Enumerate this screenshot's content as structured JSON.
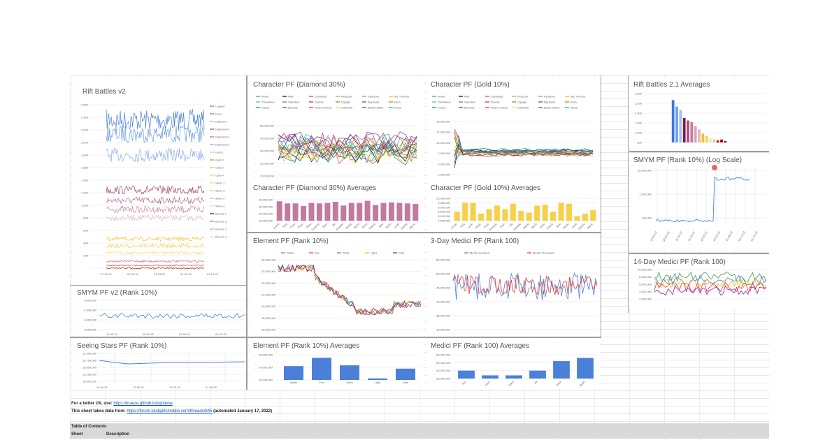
{
  "colors": {
    "blue": "#4a80d8",
    "maroon": "#a24a6e",
    "mauve": "#c27ba0",
    "gold": "#f1c232",
    "yellow": "#f6d04b",
    "red": "#e06666"
  },
  "charts": {
    "rift": {
      "title": "Rift Battles v2",
      "legend": [
        "Legend",
        "Hero",
        "Diamond",
        "Diamond 4",
        "Diamond 3",
        "Diamond 2",
        "Gold 1",
        "Gold 3",
        "Gold 2",
        "Gold 4",
        "Silver 1",
        "Silver 3",
        "Silver 2",
        "Silver 4",
        "Bronze 1",
        "Bronze 3",
        "Bronze 2",
        "Bronze 4"
      ],
      "xticks": [
        "07-09-21",
        "07-20-21",
        "01-03-22",
        "01-08-22",
        "01-16-22"
      ]
    },
    "smym_v2": {
      "title": "SMYM PF v2 (Rank 10%)",
      "yticks": [
        "5,000,000",
        "4,500,000",
        "4,000,000",
        "3,500,000"
      ],
      "xticks": [
        "11-03-21",
        "10-30-22",
        "01-09-21",
        "01-15-22"
      ]
    },
    "seeing": {
      "title": "Seeing Stars PF (Rank 10%)",
      "yticks": [
        "11,000,000",
        "10,750,000",
        "10,500,000",
        "10,250,000",
        "10,000,000"
      ],
      "xticks": [
        "11-04-21",
        "12-09-21",
        "12-03-21",
        "01-06-22"
      ]
    },
    "diamond": {
      "title": "Character PF (Diamond 30%)",
      "legend": [
        "Annie",
        "Filia",
        "Cerebella",
        "Peacock",
        "Parasoul",
        "Ms. Fortune",
        "Painwheel",
        "Valentine",
        "Double",
        "Squigly",
        "Big Band",
        "Eliza",
        "Fukua",
        "Beowulf",
        "Robo-Fortune",
        "Umbrella",
        "Black Dahlia",
        "Marie"
      ],
      "yticks": [
        "50,000,000",
        "40,000,000",
        "30,000,000",
        "20,000,000",
        "10,000,000"
      ]
    },
    "gold": {
      "title": "Character PF (Gold 10%)",
      "legend": [
        "Annie",
        "Filia",
        "Cerebella",
        "Peacock",
        "Parasoul",
        "Ms. Fortune",
        "Painwheel",
        "Valentine",
        "Double",
        "Squigly",
        "Big Band",
        "Eliza",
        "Fukua",
        "Beowulf",
        "Robo-Fortune",
        "Umbrella",
        "Black Dahlia",
        "Marie"
      ],
      "yticks": [
        "15,000,000",
        "12,500,000",
        "10,000,000",
        "7,500,000",
        "5,000,000",
        "2,500,000"
      ]
    },
    "diamond_avg": {
      "title": "Character PF (Diamond 30%) Averages",
      "categories": [
        "Annie",
        "Filia",
        "Cere",
        "Peac",
        "Para",
        "Fortune",
        "Pain",
        "Val",
        "Double",
        "Squig",
        "Band",
        "Eliza",
        "Fukua",
        "Beo",
        "Robo",
        "Umb",
        "Dahlia",
        "Marie"
      ],
      "values": [
        37,
        33,
        33,
        28,
        34,
        33,
        34,
        36,
        29,
        34,
        34,
        38,
        30,
        34,
        35,
        34,
        33,
        32
      ],
      "ylim": [
        0,
        40
      ],
      "yticks": [
        "40,000,000",
        "30,000,000",
        "20,000,000",
        "10,000,000"
      ]
    },
    "gold_avg": {
      "title": "Character PF (Gold 10%) Averages",
      "categories": [
        "Annie",
        "Filia",
        "Cere",
        "Peac",
        "Para",
        "Fortune",
        "Pain",
        "Val",
        "Double",
        "Squig",
        "Band",
        "Eliza",
        "Fukua",
        "Beo",
        "Robo",
        "Umb",
        "Dahlia",
        "Marie"
      ],
      "values": [
        8.5,
        9.5,
        9.5,
        8.3,
        8.8,
        9.2,
        8.8,
        9.4,
        8.6,
        8.4,
        9.2,
        9.3,
        8.5,
        9.5,
        9.4,
        8.0,
        8.3,
        8.7
      ],
      "ylim": [
        7.5,
        10
      ],
      "yticks": [
        "10,000,000",
        "9,500,000",
        "9,000,000",
        "8,500,000",
        "8,000,000",
        "7,500,000"
      ]
    },
    "element": {
      "title": "Element PF (Rank 10%)",
      "legend": [
        "Water",
        "Fire",
        "Wind",
        "Light",
        "Dark"
      ],
      "yticks": [
        "38,000,000",
        "32,000,000",
        "28,000,000",
        "24,000,000",
        "20,000,000",
        "16,000,000",
        "12,000,000"
      ]
    },
    "medici3": {
      "title": "3-Day Medici PF (Rank 100)",
      "legend": [
        "Medici Hundred",
        "Medici Thousand"
      ],
      "yticks": [
        "55,000,000",
        "50,000,000",
        "45,000,000",
        "40,000,000",
        "35,000,000",
        "30,000,000"
      ]
    },
    "element_avg": {
      "title": "Element PF (Rank 10%) Averages",
      "categories": [
        "Water",
        "Fire",
        "Wind",
        "Light",
        "Dark"
      ],
      "values": [
        23.5,
        26.8,
        23.8,
        18.6,
        22.5
      ],
      "ylim": [
        18,
        28
      ],
      "yticks": [
        "28,000,000",
        "24,000,000",
        "20,000,000"
      ]
    },
    "medici_avg": {
      "title": "Medici PF (Rank 100) Averages",
      "categories": [
        "Hrs",
        "Hanl",
        "Hard",
        "Hlt",
        "Dark",
        "Rash"
      ],
      "values": [
        40,
        34,
        34,
        40,
        52,
        56
      ],
      "ylim": [
        30,
        60
      ],
      "yticks": [
        "60,000,000",
        "50,000,000",
        "40,000,000",
        "30,000,000"
      ]
    },
    "rift2": {
      "title": "Rift Battles 2.1 Averages",
      "values": [
        2600,
        2200,
        2000,
        1500,
        1350,
        1250,
        1000,
        800,
        550,
        400,
        250,
        200,
        120,
        180,
        80
      ],
      "ylim": [
        0,
        3000
      ],
      "yticks": [
        "3,000",
        "2,500",
        "2,000",
        "1,500",
        "1,000",
        "500"
      ]
    },
    "smym_log": {
      "title": "SMYM PF (Rank 10%) (Log Scale)",
      "yticks": [
        "10,000,000",
        "1,000,000",
        "100,000"
      ],
      "xticks": [
        "10-01-21",
        "10-03-21",
        "11-03-21",
        "11-10-21",
        "12-02-21",
        "12-12-21",
        "01-06-22",
        "01-11-22",
        "01-14-22"
      ]
    },
    "medici14": {
      "title": "14-Day Medici PF (Rank 100)",
      "yticks": [
        "10,000,000",
        "8,000,000",
        "6,000,000",
        "4,000,000",
        "2,000,000"
      ]
    }
  },
  "footer": {
    "ux_prefix": "For a better UX, use: ",
    "ux_link": "https://kraeze.github.io/sgmnow",
    "src_prefix": "This sheet takes data from: ",
    "src_link": "https://forum.skullgirlsmobile.com/threads/845",
    "src_suffix": " (automated January 17, 2022)"
  },
  "toc": {
    "title": "Table of Contents",
    "col1": "Sheet",
    "col2": "Description"
  }
}
